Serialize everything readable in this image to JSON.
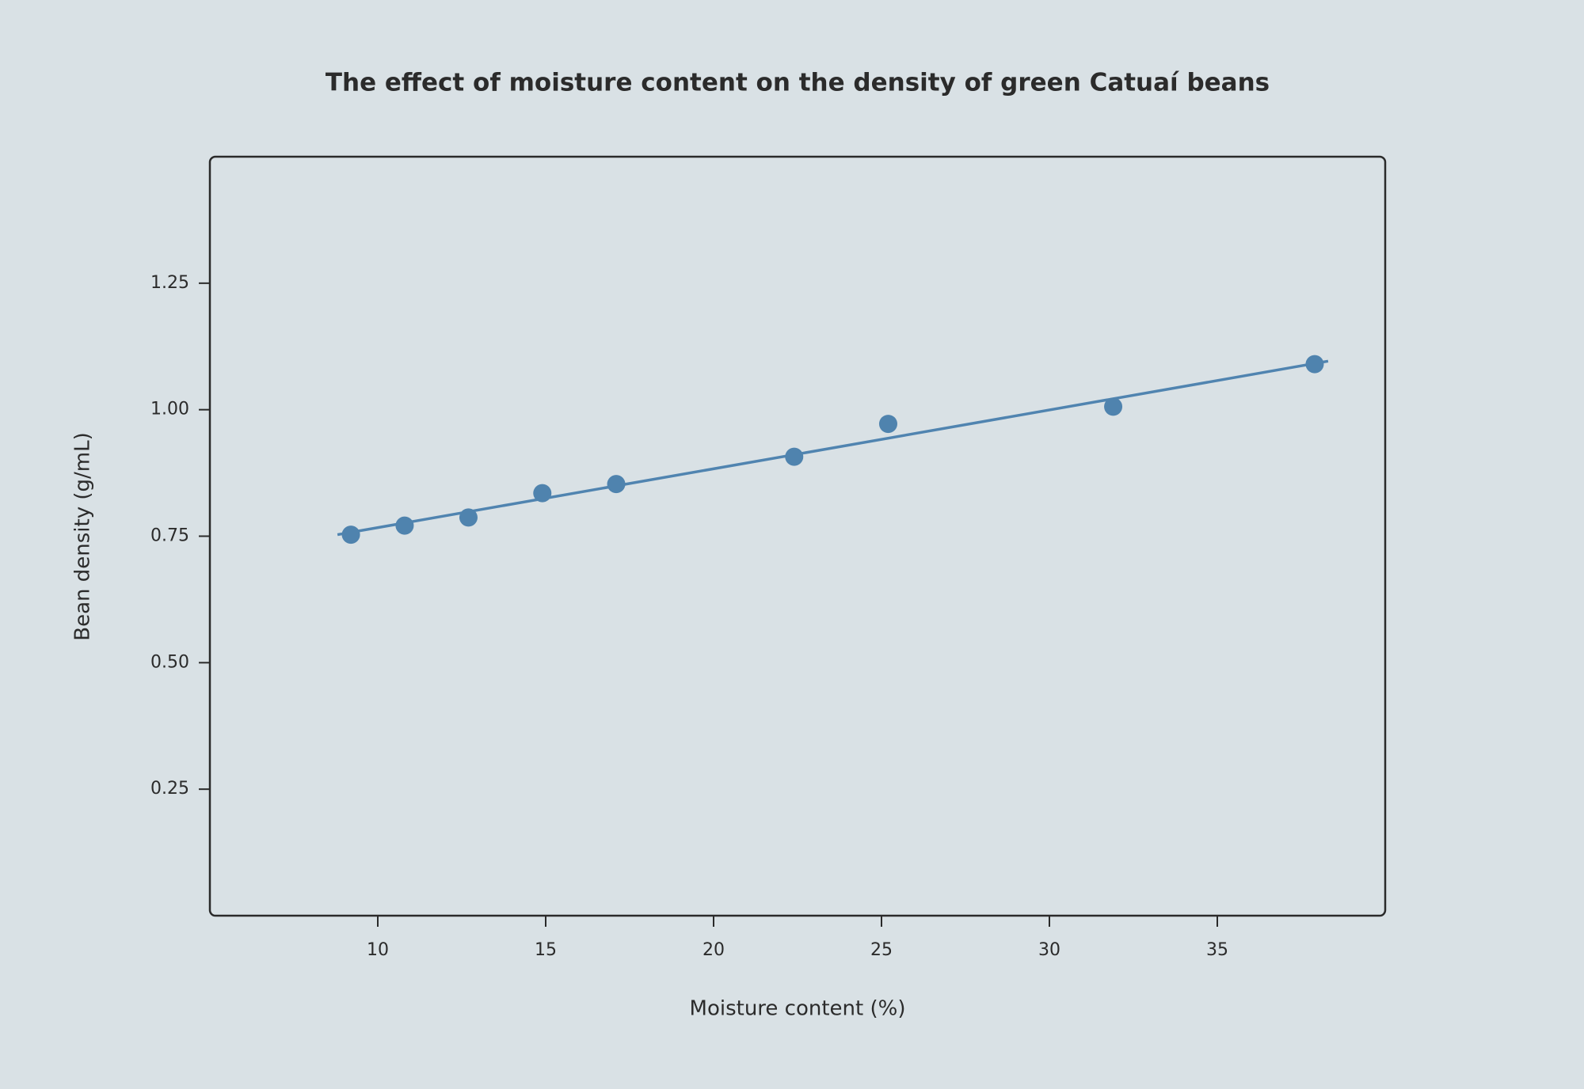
{
  "chart_data": {
    "type": "scatter",
    "title": "The effect of moisture content on the density of green Catuaí beans",
    "x_label": "Moisture content (%)",
    "y_label": "Bean density (g/mL)",
    "x": [
      9.2,
      10.8,
      12.7,
      14.9,
      17.1,
      22.4,
      25.2,
      31.9,
      37.9
    ],
    "values": [
      0.753,
      0.771,
      0.787,
      0.835,
      0.853,
      0.907,
      0.972,
      1.006,
      1.09
    ],
    "color": "#4f83ae",
    "fit_line": {
      "x": [
        8.8,
        38.3
      ],
      "values": [
        0.753,
        1.096
      ],
      "color": "#5084b0"
    },
    "xlim": [
      5,
      40
    ],
    "xticks": [
      10,
      15,
      20,
      25,
      30,
      35
    ],
    "ylim": [
      0,
      1.5
    ],
    "yticks": [
      0.25,
      {
        "value": 0.5,
        "label": "0.50"
      },
      0.75,
      {
        "value": 1,
        "label": "1.00"
      },
      1.25
    ],
    "grid": false
  }
}
